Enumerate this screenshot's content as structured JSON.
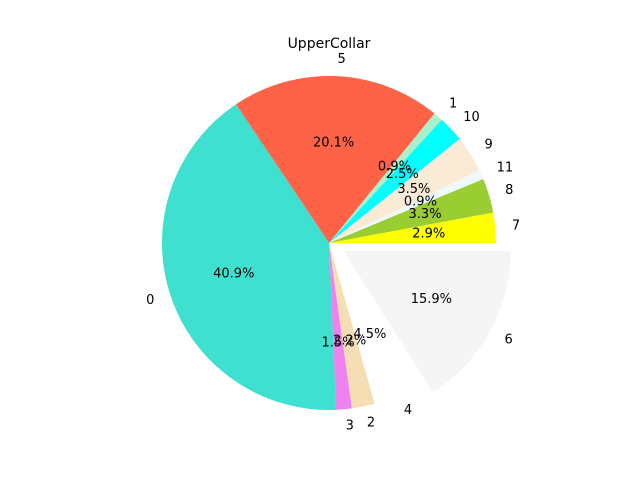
{
  "chart_data": {
    "type": "pie",
    "title": "UpperCollar",
    "start_angle_deg": 0,
    "direction": "counterclockwise",
    "slices": [
      {
        "label": "7",
        "value": 2.9,
        "pct_label": "2.9%",
        "color": "#ffff00",
        "explode": 0
      },
      {
        "label": "8",
        "value": 3.3,
        "pct_label": "3.3%",
        "color": "#9acd32",
        "explode": 0
      },
      {
        "label": "11",
        "value": 0.9,
        "pct_label": "0.9%",
        "color": "#f0f8ff",
        "explode": 0
      },
      {
        "label": "9",
        "value": 3.5,
        "pct_label": "3.5%",
        "color": "#faebd7",
        "explode": 0
      },
      {
        "label": "10",
        "value": 2.5,
        "pct_label": "2.5%",
        "color": "#00ffff",
        "explode": 0
      },
      {
        "label": "1",
        "value": 0.9,
        "pct_label": "0.9%",
        "color": "#aaf0c9",
        "explode": 0
      },
      {
        "label": "5",
        "value": 20.1,
        "pct_label": "20.1%",
        "color": "#ff6347",
        "explode": 0
      },
      {
        "label": "0",
        "value": 40.9,
        "pct_label": "40.9%",
        "color": "#40e0d0",
        "explode": 0
      },
      {
        "label": "3",
        "value": 1.5,
        "pct_label": "1.5%",
        "color": "#ee82ee",
        "explode": 0
      },
      {
        "label": "2",
        "value": 2.2,
        "pct_label": "2.2%",
        "color": "#f5deb3",
        "explode": 0
      },
      {
        "label": "4",
        "value": 4.5,
        "pct_label": "4.5%",
        "color": "#ffffff",
        "explode": 0
      },
      {
        "label": "6",
        "value": 15.9,
        "pct_label": "15.9%",
        "color": "#f5f5f5",
        "explode": 0.1
      }
    ]
  }
}
